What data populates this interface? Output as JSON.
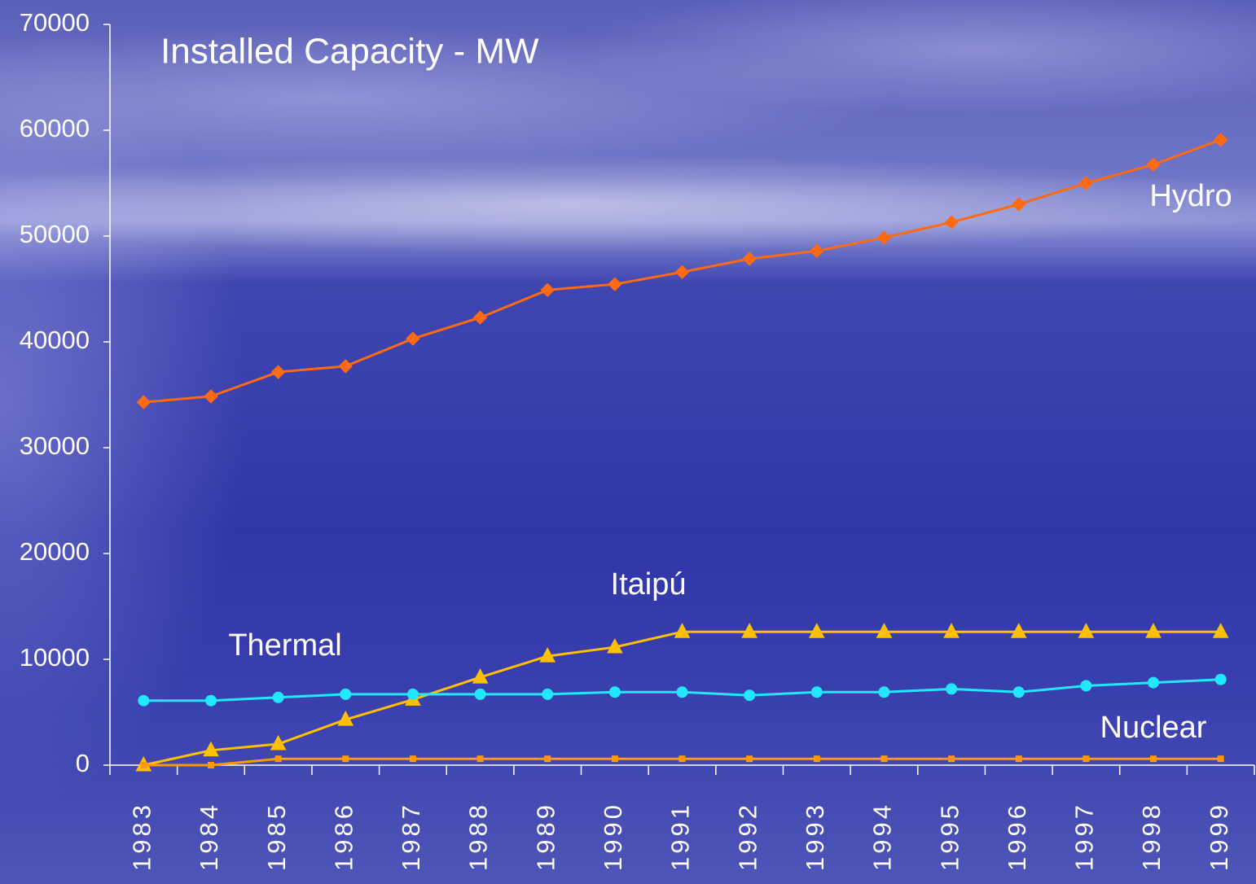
{
  "chart_data": {
    "type": "line",
    "title": "Installed Capacity - MW",
    "categories": [
      "1983",
      "1984",
      "1985",
      "1986",
      "1987",
      "1988",
      "1989",
      "1990",
      "1991",
      "1992",
      "1993",
      "1994",
      "1995",
      "1996",
      "1997",
      "1998",
      "1999"
    ],
    "ylim": [
      0,
      70000
    ],
    "yticks": [
      0,
      10000,
      20000,
      30000,
      40000,
      50000,
      60000,
      70000
    ],
    "series": [
      {
        "name": "Hydro",
        "color": "#ff6a13",
        "marker": "diamond",
        "values": [
          34300,
          34850,
          37150,
          37700,
          40300,
          42300,
          44900,
          45450,
          46600,
          47850,
          48600,
          49850,
          51300,
          53000,
          55000,
          56750,
          59100
        ]
      },
      {
        "name": "Itaipú",
        "color": "#ffc000",
        "marker": "triangle",
        "values": [
          0,
          1400,
          2000,
          4300,
          6200,
          8300,
          10300,
          11150,
          12600,
          12600,
          12600,
          12600,
          12600,
          12600,
          12600,
          12600,
          12600
        ]
      },
      {
        "name": "Thermal",
        "color": "#22e8ff",
        "marker": "circle",
        "values": [
          6100,
          6100,
          6400,
          6700,
          6700,
          6700,
          6700,
          6900,
          6900,
          6600,
          6900,
          6900,
          7200,
          6900,
          7500,
          7800,
          8100
        ]
      },
      {
        "name": "Nuclear",
        "color": "#ff9a00",
        "marker": "square",
        "values": [
          0,
          0,
          600,
          600,
          600,
          600,
          600,
          600,
          600,
          600,
          600,
          600,
          600,
          600,
          600,
          600,
          600
        ]
      }
    ]
  }
}
